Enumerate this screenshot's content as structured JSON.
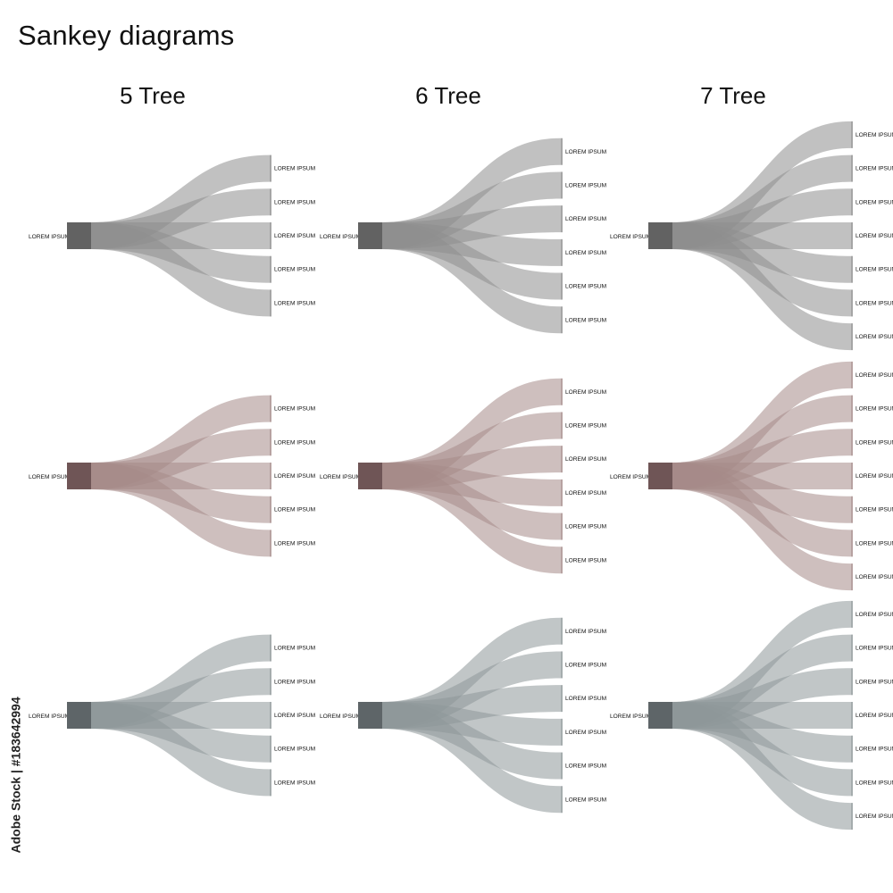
{
  "title": "Sankey diagrams",
  "columns": [
    {
      "heading": "5 Tree",
      "branches": 5
    },
    {
      "heading": "6 Tree",
      "branches": 6
    },
    {
      "heading": "7 Tree",
      "branches": 7
    }
  ],
  "node_label": "LOREM IPSUM",
  "color_schemes": [
    {
      "name": "gray",
      "link": "#8e8e8e",
      "source": "#626262"
    },
    {
      "name": "mauve",
      "link": "#a58b89",
      "source": "#6f5556"
    },
    {
      "name": "slate",
      "link": "#8e9799",
      "source": "#5e6568"
    }
  ],
  "credit": "Adobe Stock | #183642994"
}
